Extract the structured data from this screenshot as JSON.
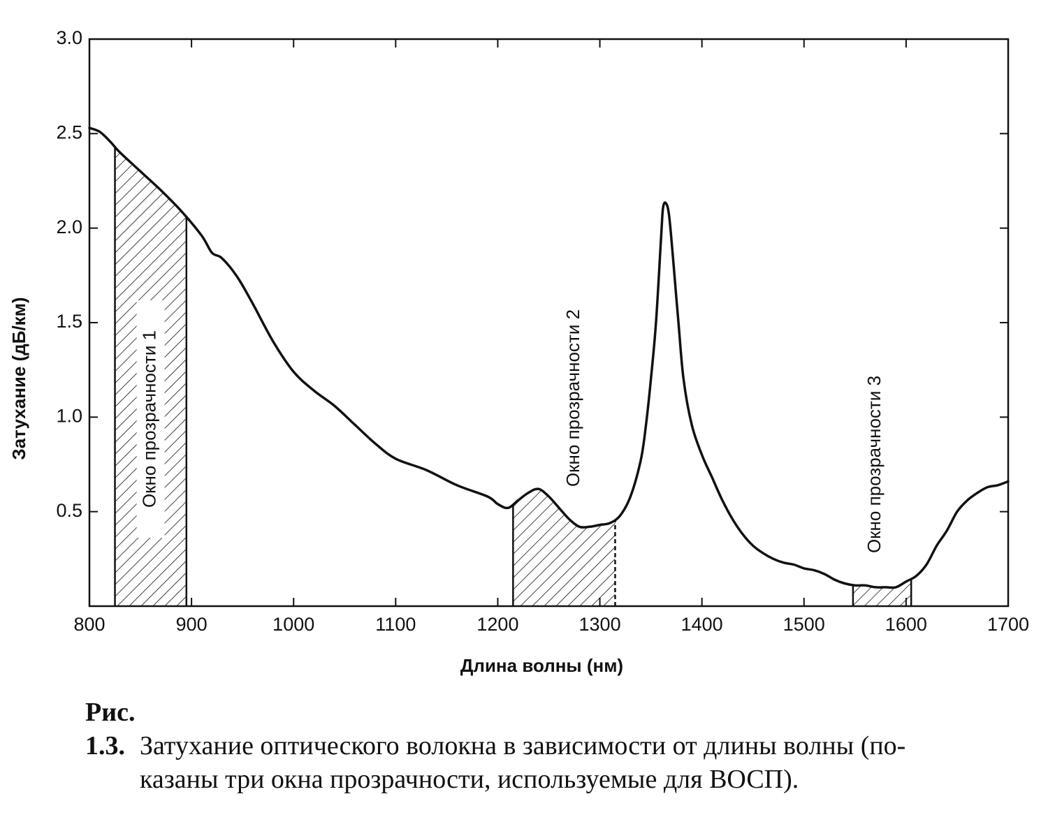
{
  "chart_data": {
    "type": "line",
    "xlabel": "Длина волны (нм)",
    "ylabel": "Затухание (дБ/км)",
    "xlim": [
      800,
      1700
    ],
    "ylim": [
      0,
      3.0
    ],
    "x_ticks": [
      "800",
      "900",
      "1000",
      "1100",
      "1200",
      "1300",
      "1400",
      "1500",
      "1600",
      "1700"
    ],
    "y_ticks": [
      "0.5",
      "1.0",
      "1.5",
      "2.0",
      "2.5",
      "3.0"
    ],
    "grid": false,
    "series": [
      {
        "x": [
          800,
          810,
          820,
          830,
          850,
          870,
          890,
          910,
          920,
          930,
          945,
          960,
          980,
          1000,
          1020,
          1040,
          1060,
          1080,
          1100,
          1130,
          1160,
          1190,
          1200,
          1210,
          1220,
          1230,
          1240,
          1250,
          1260,
          1270,
          1280,
          1290,
          1300,
          1310,
          1320,
          1330,
          1340,
          1345,
          1350,
          1355,
          1360,
          1362,
          1365,
          1368,
          1372,
          1377,
          1382,
          1390,
          1400,
          1410,
          1420,
          1430,
          1440,
          1450,
          1460,
          1470,
          1480,
          1490,
          1500,
          1510,
          1520,
          1530,
          1540,
          1550,
          1560,
          1570,
          1580,
          1590,
          1600,
          1610,
          1620,
          1630,
          1640,
          1650,
          1660,
          1670,
          1680,
          1690,
          1700
        ],
        "y": [
          2.53,
          2.51,
          2.46,
          2.4,
          2.3,
          2.2,
          2.09,
          1.96,
          1.87,
          1.84,
          1.74,
          1.6,
          1.4,
          1.24,
          1.14,
          1.06,
          0.96,
          0.86,
          0.78,
          0.72,
          0.64,
          0.58,
          0.54,
          0.52,
          0.56,
          0.6,
          0.62,
          0.58,
          0.52,
          0.46,
          0.42,
          0.42,
          0.43,
          0.44,
          0.48,
          0.58,
          0.77,
          0.95,
          1.2,
          1.5,
          1.95,
          2.11,
          2.13,
          2.06,
          1.82,
          1.5,
          1.2,
          0.96,
          0.8,
          0.68,
          0.56,
          0.46,
          0.38,
          0.32,
          0.28,
          0.25,
          0.23,
          0.22,
          0.2,
          0.19,
          0.17,
          0.14,
          0.12,
          0.11,
          0.11,
          0.1,
          0.1,
          0.1,
          0.13,
          0.16,
          0.22,
          0.32,
          0.4,
          0.5,
          0.56,
          0.6,
          0.63,
          0.64,
          0.66
        ]
      }
    ],
    "windows": [
      {
        "label": "Окно прозрачности 1",
        "x_range": [
          825,
          895
        ]
      },
      {
        "label": "Окно прозрачности 2",
        "x_range": [
          1215,
          1315
        ]
      },
      {
        "label": "Окно прозрачности 3",
        "x_range": [
          1548,
          1605
        ]
      }
    ]
  },
  "caption": {
    "number": "Рис. 1.3.",
    "line1": "Затухание оптического волокна в зависимости от длины волны (по-",
    "line2": "казаны три окна прозрачности, используемые для ВОСП)."
  }
}
